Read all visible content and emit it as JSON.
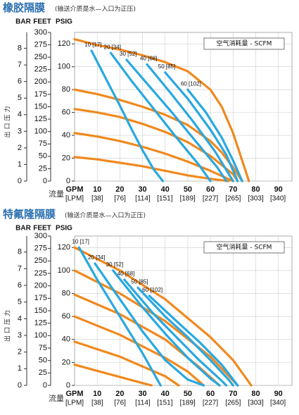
{
  "chart_data": [
    {
      "type": "line",
      "title": "橡胶隔膜",
      "subtitle": "(输送介质是水—入口为正压)",
      "y3_label": "BAR",
      "y2_label": "FEET",
      "y_label": "PSIG",
      "y_title": "出口压力",
      "x_title": "流量",
      "x_label": "GPM",
      "x2_label": "[LPM]",
      "annotation": "空气消耗量 - SCFM",
      "xlim": [
        0,
        96
      ],
      "xticks": [
        10,
        20,
        30,
        40,
        50,
        60,
        70,
        80,
        90
      ],
      "x2lim": [
        0,
        363.4
      ],
      "x2ticks": [
        {
          "value": 38,
          "label": "[38]"
        },
        {
          "value": 76,
          "label": "[76]"
        },
        {
          "value": 114,
          "label": "[114]"
        },
        {
          "value": 151,
          "label": "[151]"
        },
        {
          "value": 189,
          "label": "[189]"
        },
        {
          "value": 227,
          "label": "[227]"
        },
        {
          "value": 265,
          "label": "[265]"
        },
        {
          "value": 303,
          "label": "[303]"
        },
        {
          "value": 340,
          "label": "[340]"
        }
      ],
      "ylim": [
        0,
        130
      ],
      "yticks": [
        0,
        20,
        40,
        60,
        80,
        100,
        120
      ],
      "y2lim": [
        0,
        300
      ],
      "y2ticks": [
        0,
        25,
        50,
        75,
        100,
        125,
        150,
        175,
        200,
        225,
        250,
        275,
        300
      ],
      "y3lim": [
        0,
        8.96
      ],
      "y3ticks": [
        0,
        1,
        2,
        3,
        4,
        5,
        6,
        7,
        8
      ],
      "grid": true,
      "series": [
        {
          "color": "#f0891e",
          "x": [
            0,
            10,
            20,
            30,
            40,
            50,
            60,
            65,
            70,
            75,
            77
          ],
          "values": [
            124,
            119,
            115,
            110,
            104,
            96,
            80,
            65,
            42,
            12,
            0
          ]
        },
        {
          "color": "#f0891e",
          "x": [
            0,
            10,
            20,
            30,
            40,
            50,
            60,
            65,
            70,
            74
          ],
          "values": [
            80,
            76,
            71,
            65,
            58,
            49,
            35,
            25,
            12,
            0
          ]
        },
        {
          "color": "#f0891e",
          "x": [
            0,
            10,
            20,
            30,
            40,
            50,
            60,
            70,
            72
          ],
          "values": [
            63,
            60,
            56,
            50,
            43,
            34,
            22,
            6,
            0
          ]
        },
        {
          "color": "#f0891e",
          "x": [
            0,
            10,
            20,
            30,
            40,
            50,
            60,
            70
          ],
          "values": [
            42,
            39,
            35,
            30,
            24,
            17,
            9,
            0
          ]
        },
        {
          "color": "#f0891e",
          "x": [
            0,
            10,
            20,
            30,
            40,
            50,
            60,
            68
          ],
          "values": [
            21,
            19,
            16,
            13,
            9,
            5,
            2,
            0
          ]
        },
        {
          "name": "10 [17]",
          "color": "#29a8e0",
          "x": [
            7.5,
            15,
            20,
            25,
            30,
            35,
            39
          ],
          "values": [
            114,
            85,
            66,
            46,
            27,
            10,
            0
          ]
        },
        {
          "name": "20 [34]",
          "color": "#29a8e0",
          "x": [
            16,
            25,
            35,
            45,
            55,
            60
          ],
          "values": [
            112,
            88,
            63,
            38,
            14,
            0
          ]
        },
        {
          "name": "30 [52]",
          "color": "#29a8e0",
          "x": [
            23,
            33,
            43,
            53,
            63,
            67
          ],
          "values": [
            106,
            83,
            60,
            36,
            12,
            0
          ]
        },
        {
          "name": "40 [68]",
          "color": "#29a8e0",
          "x": [
            32,
            42,
            52,
            62,
            70
          ],
          "values": [
            102,
            78,
            53,
            26,
            0
          ]
        },
        {
          "name": "50 [85]",
          "color": "#29a8e0",
          "x": [
            40,
            50,
            60,
            67,
            72
          ],
          "values": [
            95,
            72,
            45,
            23,
            0
          ]
        },
        {
          "name": "60 [102]",
          "color": "#29a8e0",
          "x": [
            50,
            58,
            65,
            70,
            74
          ],
          "values": [
            80,
            60,
            38,
            18,
            0
          ]
        }
      ]
    },
    {
      "type": "line",
      "title": "特氟隆隔膜",
      "subtitle": "(输送介质是水—入口为正压)",
      "y3_label": "BAR",
      "y2_label": "FEET",
      "y_label": "PSIG",
      "y_title": "出口压力",
      "x_title": "流量",
      "x_label": "GPM",
      "x2_label": "[LPM]",
      "annotation": "空气消耗量 - SCFM",
      "xlim": [
        0,
        96
      ],
      "xticks": [
        10,
        20,
        30,
        40,
        50,
        60,
        70,
        80,
        90
      ],
      "x2lim": [
        0,
        363.4
      ],
      "x2ticks": [
        {
          "value": 38,
          "label": "[38]"
        },
        {
          "value": 76,
          "label": "[76]"
        },
        {
          "value": 114,
          "label": "[114]"
        },
        {
          "value": 151,
          "label": "[151]"
        },
        {
          "value": 189,
          "label": "[189]"
        },
        {
          "value": 227,
          "label": "[227]"
        },
        {
          "value": 265,
          "label": "[265]"
        },
        {
          "value": 303,
          "label": "[303]"
        },
        {
          "value": 340,
          "label": "[340]"
        }
      ],
      "ylim": [
        0,
        130
      ],
      "yticks": [
        0,
        20,
        40,
        60,
        80,
        100,
        120
      ],
      "y2lim": [
        0,
        300
      ],
      "y2ticks": [
        0,
        25,
        50,
        75,
        100,
        125,
        150,
        175,
        200,
        225,
        250,
        275,
        300
      ],
      "y3lim": [
        0,
        8.96
      ],
      "y3ticks": [
        0,
        1,
        2,
        3,
        4,
        5,
        6,
        7,
        8
      ],
      "grid": true,
      "series": [
        {
          "color": "#f0891e",
          "x": [
            0,
            20,
            40,
            60,
            70,
            78
          ],
          "values": [
            120,
            100,
            75,
            42,
            22,
            0
          ]
        },
        {
          "color": "#f0891e",
          "x": [
            0,
            20,
            40,
            60,
            72
          ],
          "values": [
            100,
            80,
            56,
            25,
            0
          ]
        },
        {
          "color": "#f0891e",
          "x": [
            0,
            20,
            40,
            55,
            64
          ],
          "values": [
            79,
            62,
            40,
            16,
            0
          ]
        },
        {
          "color": "#f0891e",
          "x": [
            0,
            20,
            40,
            50,
            57
          ],
          "values": [
            60,
            44,
            24,
            12,
            0
          ]
        },
        {
          "color": "#f0891e",
          "x": [
            0,
            20,
            40,
            46
          ],
          "values": [
            38,
            25,
            8,
            0
          ]
        },
        {
          "color": "#f0891e",
          "x": [
            0,
            15,
            30,
            34
          ],
          "values": [
            18,
            10,
            2,
            0
          ]
        },
        {
          "name": "10 [17]",
          "color": "#29a8e0",
          "x": [
            2,
            10,
            20,
            30,
            38
          ],
          "values": [
            120,
            92,
            60,
            28,
            0
          ]
        },
        {
          "name": "20 [34]",
          "color": "#29a8e0",
          "x": [
            9,
            20,
            30,
            40,
            50,
            57
          ],
          "values": [
            106,
            75,
            47,
            22,
            5,
            0
          ]
        },
        {
          "name": "30 [52]",
          "color": "#29a8e0",
          "x": [
            17,
            30,
            40,
            50,
            60,
            64
          ],
          "values": [
            100,
            68,
            45,
            24,
            6,
            0
          ]
        },
        {
          "name": "40 [68]",
          "color": "#29a8e0",
          "x": [
            22,
            35,
            45,
            55,
            65,
            67
          ],
          "values": [
            92,
            62,
            42,
            22,
            4,
            0
          ]
        },
        {
          "name": "50 [85]",
          "color": "#29a8e0",
          "x": [
            28,
            40,
            50,
            60,
            68,
            70
          ],
          "values": [
            85,
            60,
            42,
            22,
            5,
            0
          ]
        },
        {
          "name": "60 [102]",
          "color": "#29a8e0",
          "x": [
            33,
            45,
            55,
            65,
            72
          ],
          "values": [
            78,
            56,
            38,
            18,
            0
          ]
        }
      ]
    }
  ]
}
